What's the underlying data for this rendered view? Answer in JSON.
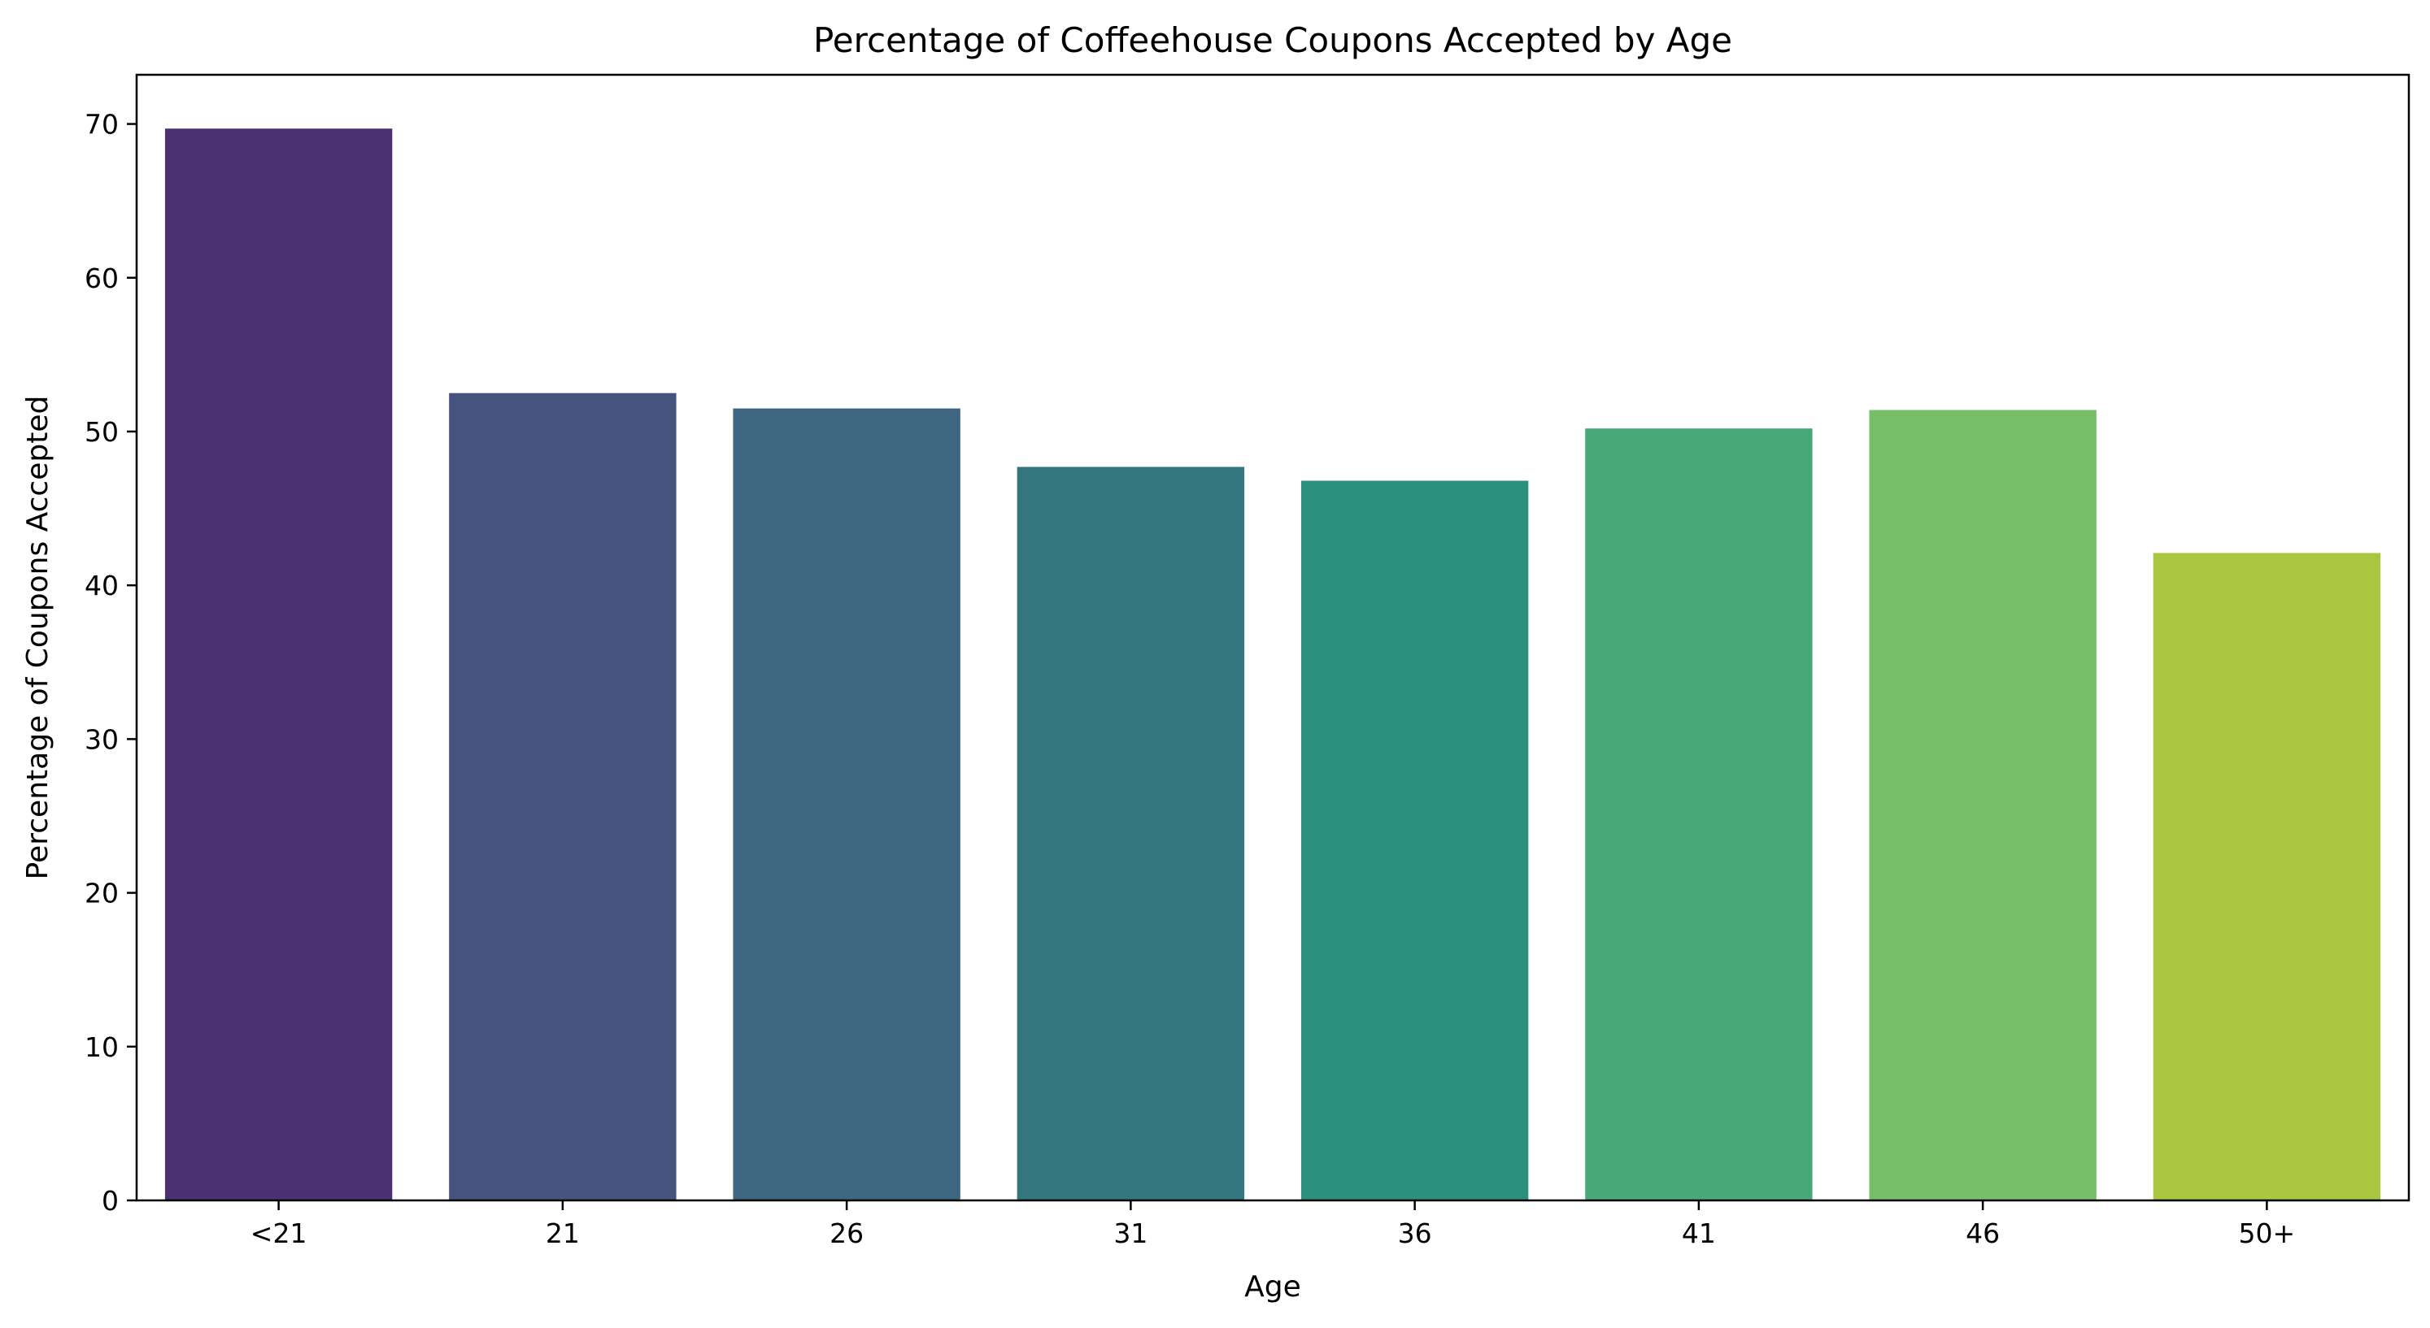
{
  "chart_data": {
    "type": "bar",
    "title": "Percentage of Coffeehouse Coupons Accepted by Age",
    "xlabel": "Age",
    "ylabel": "Percentage of Coupons Accepted",
    "categories": [
      "<21",
      "21",
      "26",
      "31",
      "36",
      "41",
      "46",
      "50+"
    ],
    "values": [
      69.7,
      52.5,
      51.5,
      47.7,
      46.8,
      50.2,
      51.4,
      42.1
    ],
    "colors": [
      "#4a306e",
      "#47537f",
      "#3e6680",
      "#34767e",
      "#2c8e7c",
      "#48a878",
      "#76be68",
      "#a8c640"
    ],
    "ylim": [
      0,
      73.2
    ],
    "yticks": [
      0,
      10,
      20,
      30,
      40,
      50,
      60,
      70
    ],
    "grid": false
  }
}
